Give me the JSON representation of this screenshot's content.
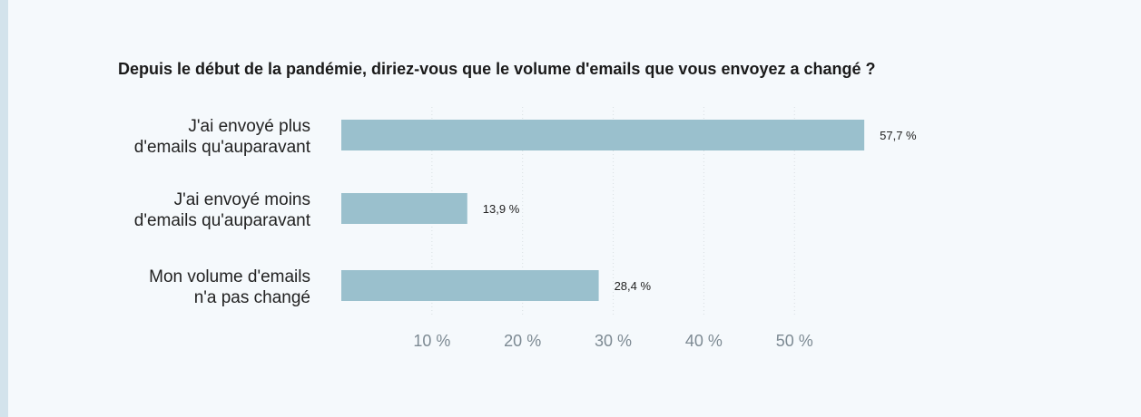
{
  "chart_data": {
    "type": "bar",
    "orientation": "horizontal",
    "title": "Depuis le début de la pandémie, diriez-vous que le volume d'emails que vous envoyez a changé ?",
    "categories": [
      [
        "J'ai envoyé plus",
        "d'emails qu'auparavant"
      ],
      [
        "J'ai envoyé moins",
        "d'emails qu'auparavant"
      ],
      [
        "Mon volume d'emails",
        "n'a pas changé"
      ]
    ],
    "values": [
      57.7,
      13.9,
      28.4
    ],
    "value_labels": [
      "57,7 %",
      "13,9 %",
      "28,4 %"
    ],
    "xticks": [
      10,
      20,
      30,
      40,
      50
    ],
    "xtick_labels": [
      "10 %",
      "20 %",
      "30 %",
      "40 %",
      "50 %"
    ],
    "xlim": [
      0,
      60
    ],
    "grid": true,
    "bar_color": "#9ac0cd",
    "grid_color": "#d8dee2"
  }
}
